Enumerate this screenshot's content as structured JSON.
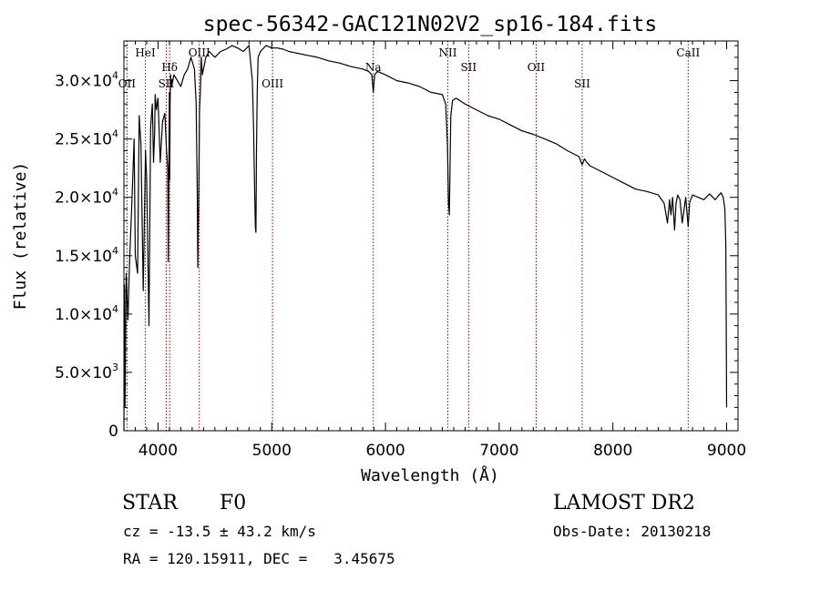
{
  "chart_data": {
    "type": "line",
    "title": "spec-56342-GAC121N02V2_sp16-184.fits",
    "xlabel": "Wavelength (Å)",
    "ylabel": "Flux (relative)",
    "xlim": [
      3700,
      9100
    ],
    "ylim": [
      0,
      33400
    ],
    "xticks": [
      {
        "v": 4000,
        "label": "4000"
      },
      {
        "v": 5000,
        "label": "5000"
      },
      {
        "v": 6000,
        "label": "6000"
      },
      {
        "v": 7000,
        "label": "7000"
      },
      {
        "v": 8000,
        "label": "8000"
      },
      {
        "v": 9000,
        "label": "9000"
      }
    ],
    "yticks": [
      {
        "v": 0,
        "mant": "0",
        "exp": ""
      },
      {
        "v": 5000,
        "mant": "5.0×10",
        "exp": "3"
      },
      {
        "v": 10000,
        "mant": "1.0×10",
        "exp": "4"
      },
      {
        "v": 15000,
        "mant": "1.5×10",
        "exp": "4"
      },
      {
        "v": 20000,
        "mant": "2.0×10",
        "exp": "4"
      },
      {
        "v": 25000,
        "mant": "2.5×10",
        "exp": "4"
      },
      {
        "v": 30000,
        "mant": "3.0×10",
        "exp": "4"
      }
    ],
    "lines": [
      {
        "label": "OII",
        "wave": 3727,
        "row": 3
      },
      {
        "label": "HeI",
        "wave": 3889,
        "row": 1
      },
      {
        "label": "Hδ",
        "wave": 4102,
        "row": 2
      },
      {
        "label": "SII",
        "wave": 4072,
        "row": 3
      },
      {
        "label": "OIII",
        "wave": 4363,
        "row": 1
      },
      {
        "label": "OIII",
        "wave": 5007,
        "row": 3
      },
      {
        "label": "Na",
        "wave": 5893,
        "row": 2
      },
      {
        "label": "NII",
        "wave": 6548,
        "row": 1
      },
      {
        "label": "SII",
        "wave": 6731,
        "row": 2
      },
      {
        "label": "OII",
        "wave": 7325,
        "row": 2
      },
      {
        "label": "SII",
        "wave": 7730,
        "row": 3
      },
      {
        "label": "CaII",
        "wave": 8662,
        "row": 1
      }
    ],
    "line_color": "#990000",
    "grid": false,
    "series": [
      {
        "x": [
          3700,
          3705,
          3710,
          3720,
          3735,
          3750,
          3770,
          3790,
          3800,
          3820,
          3835,
          3850,
          3870,
          3890,
          3900,
          3920,
          3935,
          3950,
          3960,
          3970,
          3975,
          3985,
          4000,
          4020,
          4040,
          4060,
          4075,
          4085,
          4090,
          4095,
          4100,
          4103,
          4106,
          4110,
          4120,
          4140,
          4170,
          4200,
          4230,
          4260,
          4290,
          4320,
          4335,
          4345,
          4350,
          4358,
          4365,
          4372,
          4380,
          4390,
          4420,
          4450,
          4500,
          4550,
          4600,
          4650,
          4700,
          4750,
          4800,
          4830,
          4840,
          4850,
          4856,
          4861,
          4866,
          4872,
          4880,
          4900,
          4950,
          5000,
          5050,
          5100,
          5150,
          5200,
          5250,
          5300,
          5400,
          5500,
          5600,
          5700,
          5800,
          5850,
          5880,
          5893,
          5905,
          5930,
          6000,
          6100,
          6200,
          6300,
          6400,
          6500,
          6530,
          6545,
          6555,
          6562,
          6568,
          6575,
          6590,
          6620,
          6700,
          6800,
          6900,
          7000,
          7100,
          7200,
          7300,
          7400,
          7500,
          7600,
          7700,
          7730,
          7750,
          7770,
          7800,
          7900,
          8000,
          8100,
          8200,
          8300,
          8400,
          8450,
          8480,
          8498,
          8510,
          8525,
          8542,
          8555,
          8570,
          8590,
          8610,
          8640,
          8662,
          8675,
          8700,
          8750,
          8800,
          8850,
          8900,
          8950,
          8970,
          8985,
          8993,
          8997,
          9000
        ],
        "y": [
          0,
          12500,
          2000,
          13500,
          9500,
          14500,
          19500,
          25000,
          15000,
          13500,
          27000,
          24500,
          12000,
          24000,
          21500,
          9000,
          26000,
          28000,
          23000,
          25500,
          28800,
          27500,
          28500,
          23000,
          26500,
          27200,
          24000,
          22500,
          14500,
          22000,
          29000,
          21500,
          28000,
          30500,
          29500,
          30500,
          30000,
          29500,
          30500,
          31000,
          32000,
          31000,
          28000,
          20500,
          14000,
          20000,
          27500,
          29000,
          32000,
          30500,
          32000,
          32500,
          32000,
          32500,
          32700,
          33000,
          32800,
          32500,
          33000,
          30000,
          26000,
          20500,
          17500,
          17000,
          24000,
          29000,
          32000,
          32500,
          33000,
          32800,
          32800,
          32700,
          32500,
          32400,
          32300,
          32200,
          32000,
          31700,
          31500,
          31200,
          31000,
          30800,
          30500,
          29000,
          30500,
          30800,
          30500,
          30000,
          29800,
          29500,
          29000,
          28800,
          28000,
          24500,
          19500,
          18500,
          23000,
          27000,
          28300,
          28500,
          28000,
          27500,
          27000,
          26700,
          26200,
          25700,
          25400,
          25000,
          24600,
          24000,
          23500,
          22800,
          23300,
          23000,
          22700,
          22200,
          21700,
          21200,
          20700,
          20500,
          20200,
          19500,
          17800,
          19800,
          18500,
          20000,
          17200,
          19500,
          20200,
          19800,
          17800,
          20000,
          17500,
          19600,
          20200,
          20000,
          19800,
          20300,
          19800,
          20400,
          20000,
          19000,
          16000,
          9000,
          2000
        ]
      }
    ]
  },
  "info": {
    "class_label": "STAR",
    "subclass": "F0",
    "survey": "LAMOST DR2",
    "velocity": "cz = -13.5 ± 43.2 km/s",
    "obs_date": "Obs-Date: 20130218",
    "coords": "RA = 120.15911, DEC =   3.45675"
  }
}
